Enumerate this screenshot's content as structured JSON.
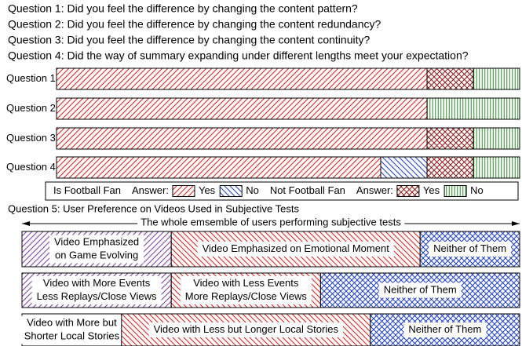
{
  "chart_data": [
    {
      "type": "stacked-hbar",
      "questions": [
        "Question 1: Did you feel the difference by changing the content pattern?",
        "Question 2: Did you feel the difference by changing the content redundancy?",
        "Question 3: Did you feel the difference by changing the content continuity?",
        "Question 4: Did the way of summary expanding under different lengths meet your expectation?"
      ],
      "categories": [
        "Question 1",
        "Question 2",
        "Question 3",
        "Question 4"
      ],
      "xlim": [
        0,
        100
      ],
      "legend_groups": [
        "Is Football Fan",
        "Not Football Fan"
      ],
      "legend_answer": "Answer:",
      "series": [
        {
          "name": "Yes",
          "group": 0,
          "color": "#d42020",
          "hatch": "slash",
          "values": [
            80,
            80,
            80,
            70
          ]
        },
        {
          "name": "No",
          "group": 0,
          "color": "#1f3fbf",
          "hatch": "backslash",
          "values": [
            0,
            0,
            0,
            10
          ]
        },
        {
          "name": "Yes",
          "group": 1,
          "color": "#8b1a1a",
          "hatch": "cross",
          "values": [
            10,
            0,
            10,
            10
          ]
        },
        {
          "name": "No",
          "group": 1,
          "color": "#2a8a2a",
          "hatch": "vertical",
          "values": [
            10,
            20,
            10,
            10
          ]
        }
      ]
    },
    {
      "type": "segment-rows",
      "title": "Question 5: User Preference on Videos Used in Subjective Tests",
      "span_label": "The whole emsemble of users performing subjective tests",
      "xlim": [
        0,
        100
      ],
      "rows": [
        {
          "segments": [
            {
              "label": [
                "Video Emphasized",
                "on Game Evolving"
              ],
              "value": 30,
              "color": "#7a3fa0",
              "hatch": "slash"
            },
            {
              "label": [
                "Video Emphasized on Emotional Moment"
              ],
              "value": 50,
              "color": "#d42020",
              "hatch": "backslash"
            },
            {
              "label": [
                "Neither of Them"
              ],
              "value": 20,
              "color": "#1f3fbf",
              "hatch": "cross"
            }
          ]
        },
        {
          "segments": [
            {
              "label": [
                "Video with More Events",
                "Less Replays/Close Views"
              ],
              "value": 30,
              "color": "#7a3fa0",
              "hatch": "slash"
            },
            {
              "label": [
                "Video with Less Events",
                "More Replays/Close Views"
              ],
              "value": 30,
              "color": "#d42020",
              "hatch": "backslash"
            },
            {
              "label": [
                "Neither of Them"
              ],
              "value": 40,
              "color": "#1f3fbf",
              "hatch": "cross"
            }
          ]
        },
        {
          "segments": [
            {
              "label": [
                "Video with More but",
                "Shorter Local Stories"
              ],
              "value": 20,
              "color": "#ffffff",
              "hatch": "none"
            },
            {
              "label": [
                "Video with Less but Longer Local Stories"
              ],
              "value": 50,
              "color": "#d42020",
              "hatch": "backslash"
            },
            {
              "label": [
                "Neither of Them"
              ],
              "value": 30,
              "color": "#1f3fbf",
              "hatch": "cross"
            }
          ]
        }
      ]
    }
  ]
}
